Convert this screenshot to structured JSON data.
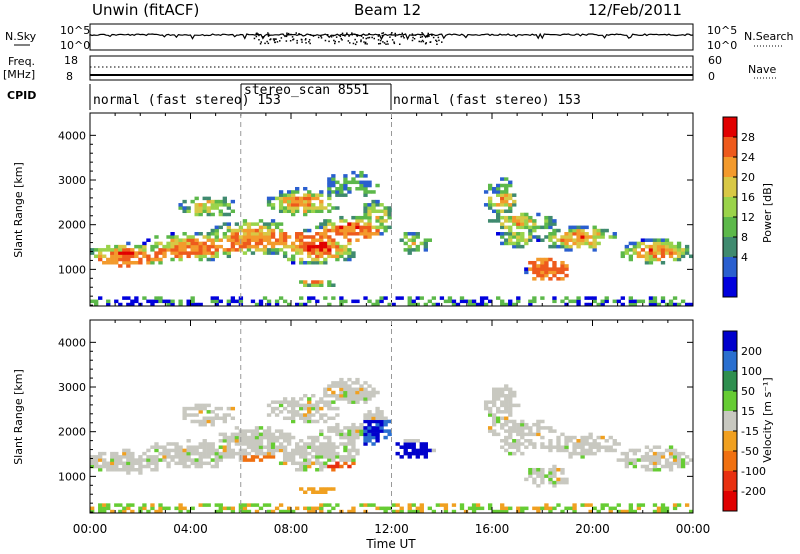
{
  "header": {
    "title": "Unwin (fitACF)",
    "beam": "Beam 12",
    "date": "12/Feb/2011"
  },
  "left_labels": {
    "nsky": "N.Sky",
    "freq": "Freq.",
    "freq_unit": "[MHz]",
    "cpid": "CPID"
  },
  "right_labels": {
    "nsearch": "N.Search",
    "nave": "Nave"
  },
  "top_panels": {
    "noise_left_ticks": [
      "10^5",
      "10^0"
    ],
    "noise_right_ticks": [
      "10^5",
      "10^0"
    ],
    "freq_left_ticks": [
      "18",
      "8"
    ],
    "nave_right_ticks": [
      "60",
      "0"
    ]
  },
  "cpid_segments": [
    {
      "label": "normal (fast stereo) 153",
      "start_hour": 0.0
    },
    {
      "label": "stereo_scan 8551",
      "start_hour": 6.0
    },
    {
      "label": "normal (fast stereo) 153",
      "start_hour": 12.0
    }
  ],
  "colors": {
    "power": [
      "#0000dd",
      "#2a5fcf",
      "#3f8a6f",
      "#5cb84a",
      "#9ad34a",
      "#d8c845",
      "#f39a2c",
      "#ee5a1c",
      "#e10000"
    ],
    "velocity": [
      "#0000cc",
      "#2a6fcf",
      "#2f8f4f",
      "#66cc33",
      "#c8c8c0",
      "#f0a020",
      "#f07010",
      "#e83010",
      "#e00000"
    ]
  },
  "colorbars": {
    "power": {
      "label": "Power [dB]",
      "ticks": [
        "28",
        "24",
        "20",
        "16",
        "12",
        "8",
        "4"
      ]
    },
    "velocity": {
      "label": "Velocity [m s⁻¹]",
      "ticks": [
        "200",
        "100",
        "50",
        "15",
        "-15",
        "-50",
        "-100",
        "-200"
      ]
    }
  },
  "chart_data": [
    {
      "type": "heatmap",
      "name": "power",
      "ylabel": "Slant Range [km]",
      "xlim": [
        0,
        24
      ],
      "ylim": [
        180,
        4500
      ],
      "yticks": [
        1000,
        2000,
        3000,
        4000
      ],
      "xticks": [
        "00:00",
        "04:00",
        "08:00",
        "12:00",
        "16:00",
        "20:00",
        "00:00"
      ],
      "xlabel": "Time UT",
      "marker_hours": [
        6,
        12
      ]
    },
    {
      "type": "heatmap",
      "name": "velocity",
      "ylabel": "Slant Range [km]",
      "xlim": [
        0,
        24
      ],
      "ylim": [
        180,
        4500
      ],
      "yticks": [
        1000,
        2000,
        3000,
        4000
      ],
      "xticks": [
        "00:00",
        "04:00",
        "08:00",
        "12:00",
        "16:00",
        "20:00",
        "00:00"
      ],
      "xlabel": "Time UT",
      "marker_hours": [
        6,
        12
      ]
    }
  ]
}
